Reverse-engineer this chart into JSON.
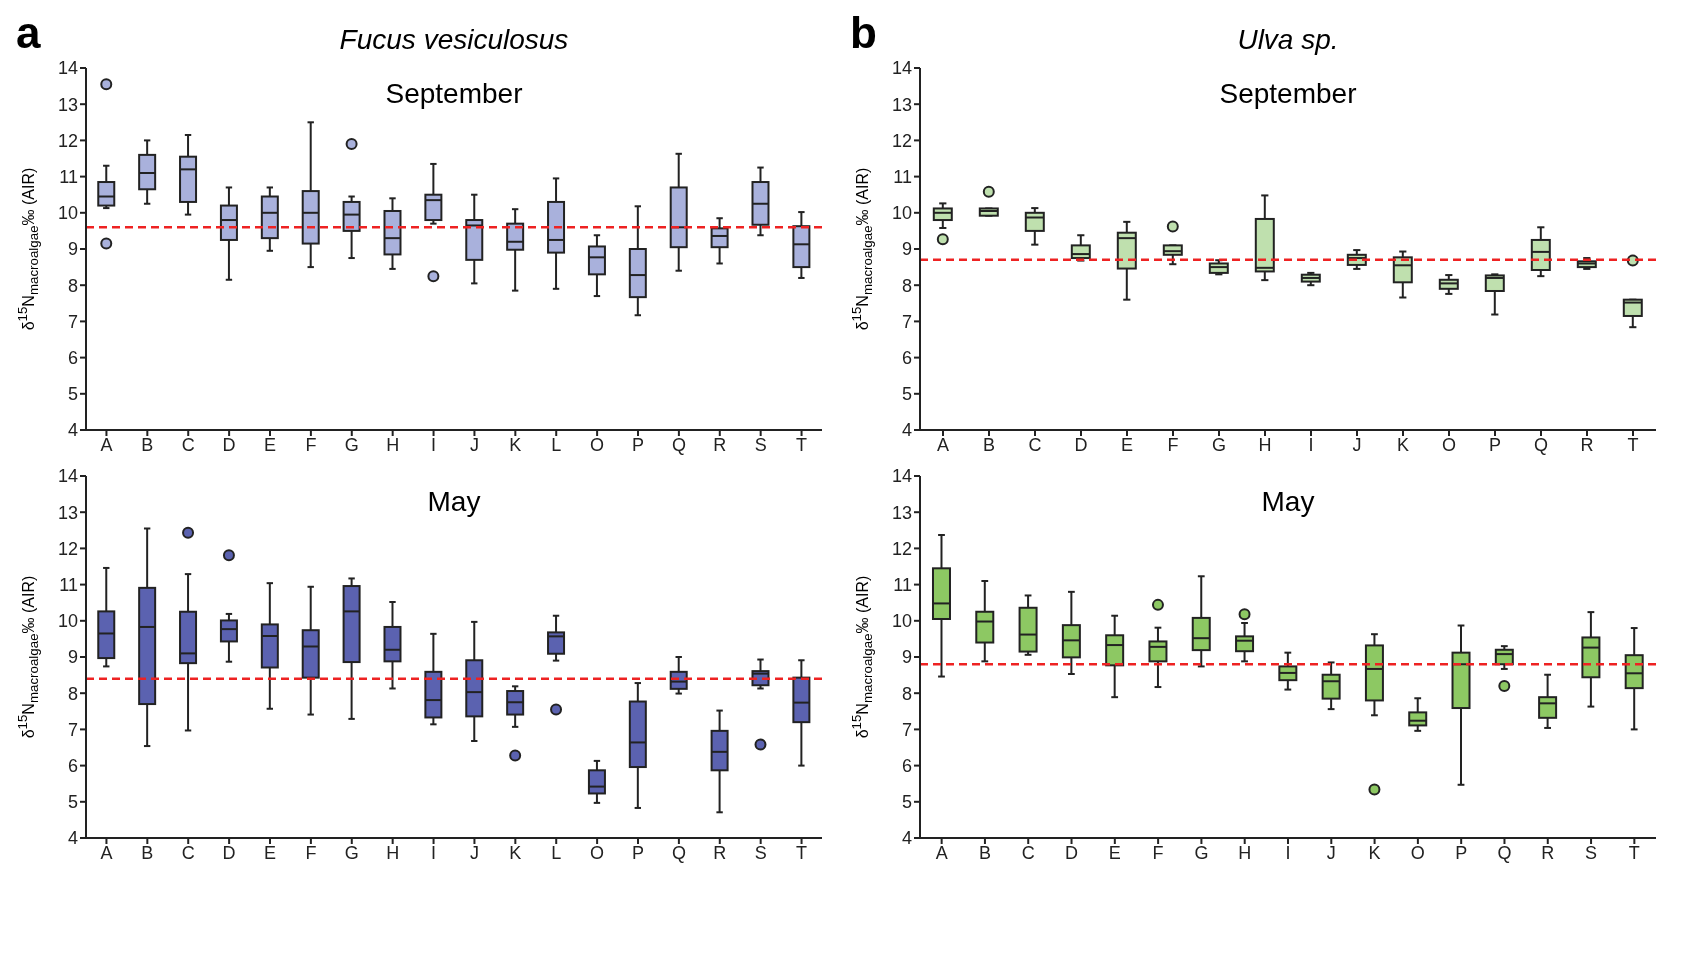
{
  "chart_data": [
    {
      "type": "box",
      "title": "Fucus vesiculosus",
      "subtitle": "September",
      "annotations": [
        "a"
      ],
      "ylabel": "δ$^{15}$N$_{macroalgae}$‰ (AIR)",
      "color": "#a9b1dc",
      "ylim": [
        4,
        14
      ],
      "yticks": [
        4,
        5,
        6,
        7,
        8,
        9,
        10,
        11,
        12,
        13,
        14
      ],
      "categories": [
        "A",
        "B",
        "C",
        "D",
        "E",
        "F",
        "G",
        "H",
        "I",
        "J",
        "K",
        "L",
        "O",
        "P",
        "Q",
        "R",
        "S",
        "T"
      ],
      "boxes": [
        {
          "low": 10.13,
          "q1": 10.2,
          "median": 10.45,
          "q3": 10.85,
          "high": 11.3,
          "outliers": [
            13.55,
            9.15
          ]
        },
        {
          "low": 10.25,
          "q1": 10.65,
          "median": 11.1,
          "q3": 11.6,
          "high": 12.0
        },
        {
          "low": 9.95,
          "q1": 10.3,
          "median": 11.2,
          "q3": 11.55,
          "high": 12.15
        },
        {
          "low": 8.15,
          "q1": 9.25,
          "median": 9.8,
          "q3": 10.2,
          "high": 10.7
        },
        {
          "low": 8.95,
          "q1": 9.3,
          "median": 10.0,
          "q3": 10.45,
          "high": 10.7
        },
        {
          "low": 8.5,
          "q1": 9.15,
          "median": 10.0,
          "q3": 10.6,
          "high": 12.5
        },
        {
          "low": 8.75,
          "q1": 9.5,
          "median": 9.95,
          "q3": 10.3,
          "high": 10.45,
          "outliers": [
            11.9
          ]
        },
        {
          "low": 8.45,
          "q1": 8.85,
          "median": 9.3,
          "q3": 10.05,
          "high": 10.4
        },
        {
          "low": 9.7,
          "q1": 9.8,
          "median": 10.35,
          "q3": 10.5,
          "high": 11.35,
          "outliers": [
            8.25
          ]
        },
        {
          "low": 8.05,
          "q1": 8.7,
          "median": 9.65,
          "q3": 9.8,
          "high": 10.5
        },
        {
          "low": 7.85,
          "q1": 8.98,
          "median": 9.2,
          "q3": 9.7,
          "high": 10.1
        },
        {
          "low": 7.9,
          "q1": 8.9,
          "median": 9.25,
          "q3": 10.3,
          "high": 10.95
        },
        {
          "low": 7.7,
          "q1": 8.3,
          "median": 8.77,
          "q3": 9.07,
          "high": 9.38
        },
        {
          "low": 7.17,
          "q1": 7.67,
          "median": 8.28,
          "q3": 9.0,
          "high": 10.18
        },
        {
          "low": 8.4,
          "q1": 9.05,
          "median": 9.6,
          "q3": 10.7,
          "high": 11.63
        },
        {
          "low": 8.6,
          "q1": 9.05,
          "median": 9.36,
          "q3": 9.57,
          "high": 9.85
        },
        {
          "low": 9.38,
          "q1": 9.67,
          "median": 10.25,
          "q3": 10.85,
          "high": 11.25
        },
        {
          "low": 8.2,
          "q1": 8.5,
          "median": 9.13,
          "q3": 9.63,
          "high": 10.02
        }
      ],
      "ref_lines": [
        {
          "axis": "y",
          "value": 9.6,
          "color": "#ee2222",
          "line_style": "dashed"
        }
      ]
    },
    {
      "type": "box",
      "title": "Ulva sp.",
      "subtitle": "September",
      "annotations": [
        "b"
      ],
      "ylabel": "δ$^{15}$N$_{macroalgae}$‰ (AIR)",
      "color": "#bfe0ae",
      "ylim": [
        4,
        14
      ],
      "yticks": [
        4,
        5,
        6,
        7,
        8,
        9,
        10,
        11,
        12,
        13,
        14
      ],
      "categories": [
        "A",
        "B",
        "C",
        "D",
        "E",
        "F",
        "G",
        "H",
        "I",
        "J",
        "K",
        "O",
        "P",
        "Q",
        "R",
        "T"
      ],
      "boxes": [
        {
          "low": 9.58,
          "q1": 9.8,
          "median": 10.0,
          "q3": 10.12,
          "high": 10.26,
          "outliers": [
            9.27
          ]
        },
        {
          "low": 9.92,
          "q1": 9.92,
          "median": 10.05,
          "q3": 10.12,
          "high": 10.12,
          "outliers": [
            10.58
          ]
        },
        {
          "low": 9.12,
          "q1": 9.5,
          "median": 9.87,
          "q3": 10.0,
          "high": 10.13
        },
        {
          "low": 8.68,
          "q1": 8.75,
          "median": 8.86,
          "q3": 9.1,
          "high": 9.38
        },
        {
          "low": 7.6,
          "q1": 8.46,
          "median": 9.3,
          "q3": 9.45,
          "high": 9.75
        },
        {
          "low": 8.58,
          "q1": 8.84,
          "median": 8.94,
          "q3": 9.1,
          "high": 9.1,
          "outliers": [
            9.62
          ]
        },
        {
          "low": 8.3,
          "q1": 8.34,
          "median": 8.5,
          "q3": 8.6,
          "high": 8.69
        },
        {
          "low": 8.14,
          "q1": 8.38,
          "median": 8.48,
          "q3": 9.83,
          "high": 10.48
        },
        {
          "low": 8.0,
          "q1": 8.1,
          "median": 8.2,
          "q3": 8.29,
          "high": 8.34
        },
        {
          "low": 8.45,
          "q1": 8.56,
          "median": 8.75,
          "q3": 8.84,
          "high": 8.97
        },
        {
          "low": 7.66,
          "q1": 8.08,
          "median": 8.55,
          "q3": 8.77,
          "high": 8.93
        },
        {
          "low": 7.76,
          "q1": 7.9,
          "median": 8.05,
          "q3": 8.15,
          "high": 8.28
        },
        {
          "low": 7.19,
          "q1": 7.84,
          "median": 8.2,
          "q3": 8.27,
          "high": 8.3
        },
        {
          "low": 8.25,
          "q1": 8.42,
          "median": 8.92,
          "q3": 9.25,
          "high": 9.6
        },
        {
          "low": 8.45,
          "q1": 8.5,
          "median": 8.6,
          "q3": 8.66,
          "high": 8.75
        },
        {
          "low": 6.84,
          "q1": 7.15,
          "median": 7.52,
          "q3": 7.6,
          "high": 7.6,
          "outliers": [
            8.68
          ]
        }
      ],
      "ref_lines": [
        {
          "axis": "y",
          "value": 8.7,
          "color": "#ee2222",
          "line_style": "dashed"
        }
      ]
    },
    {
      "type": "box",
      "subtitle": "May",
      "ylabel": "δ$^{15}$N$_{macroalgae}$‰ (AIR)",
      "color": "#5b62b0",
      "ylim": [
        4,
        14
      ],
      "yticks": [
        4,
        5,
        6,
        7,
        8,
        9,
        10,
        11,
        12,
        13,
        14
      ],
      "categories": [
        "A",
        "B",
        "C",
        "D",
        "E",
        "F",
        "G",
        "H",
        "I",
        "J",
        "K",
        "L",
        "O",
        "P",
        "Q",
        "R",
        "S",
        "T"
      ],
      "boxes": [
        {
          "low": 8.74,
          "q1": 8.97,
          "median": 9.65,
          "q3": 10.26,
          "high": 11.46
        },
        {
          "low": 6.54,
          "q1": 7.7,
          "median": 9.83,
          "q3": 10.91,
          "high": 12.55
        },
        {
          "low": 6.97,
          "q1": 8.83,
          "median": 9.1,
          "q3": 10.25,
          "high": 11.29,
          "outliers": [
            12.43
          ]
        },
        {
          "low": 8.87,
          "q1": 9.43,
          "median": 9.77,
          "q3": 10.01,
          "high": 10.19,
          "outliers": [
            11.81
          ]
        },
        {
          "low": 7.57,
          "q1": 8.71,
          "median": 9.58,
          "q3": 9.9,
          "high": 11.04
        },
        {
          "low": 7.41,
          "q1": 8.43,
          "median": 9.29,
          "q3": 9.74,
          "high": 10.94
        },
        {
          "low": 7.29,
          "q1": 8.86,
          "median": 10.26,
          "q3": 10.96,
          "high": 11.17
        },
        {
          "low": 8.13,
          "q1": 8.88,
          "median": 9.2,
          "q3": 9.83,
          "high": 10.52
        },
        {
          "low": 7.14,
          "q1": 7.33,
          "median": 7.81,
          "q3": 8.59,
          "high": 9.64
        },
        {
          "low": 6.68,
          "q1": 7.36,
          "median": 8.03,
          "q3": 8.91,
          "high": 9.97
        },
        {
          "low": 7.07,
          "q1": 7.41,
          "median": 7.75,
          "q3": 8.06,
          "high": 8.19,
          "outliers": [
            6.28
          ]
        },
        {
          "low": 8.9,
          "q1": 9.09,
          "median": 9.57,
          "q3": 9.68,
          "high": 10.14,
          "outliers": [
            7.55
          ]
        },
        {
          "low": 4.97,
          "q1": 5.23,
          "median": 5.42,
          "q3": 5.87,
          "high": 6.13
        },
        {
          "low": 4.83,
          "q1": 5.96,
          "median": 6.64,
          "q3": 7.77,
          "high": 8.28
        },
        {
          "low": 7.99,
          "q1": 8.12,
          "median": 8.32,
          "q3": 8.59,
          "high": 9.0
        },
        {
          "low": 4.71,
          "q1": 5.87,
          "median": 6.38,
          "q3": 6.96,
          "high": 7.52
        },
        {
          "low": 8.13,
          "q1": 8.22,
          "median": 8.54,
          "q3": 8.61,
          "high": 8.93,
          "outliers": [
            6.58
          ]
        },
        {
          "low": 6.0,
          "q1": 7.2,
          "median": 7.74,
          "q3": 8.43,
          "high": 8.91
        }
      ],
      "ref_lines": [
        {
          "axis": "y",
          "value": 8.4,
          "color": "#ee2222",
          "line_style": "dashed"
        }
      ]
    },
    {
      "type": "box",
      "subtitle": "May",
      "ylabel": "δ$^{15}$N$_{macroalgae}$‰ (AIR)",
      "color": "#8dc863",
      "ylim": [
        4,
        14
      ],
      "yticks": [
        4,
        5,
        6,
        7,
        8,
        9,
        10,
        11,
        12,
        13,
        14
      ],
      "categories": [
        "A",
        "B",
        "C",
        "D",
        "E",
        "F",
        "G",
        "H",
        "I",
        "J",
        "K",
        "O",
        "P",
        "Q",
        "R",
        "S",
        "T"
      ],
      "boxes": [
        {
          "low": 8.46,
          "q1": 10.05,
          "median": 10.48,
          "q3": 11.45,
          "high": 12.37
        },
        {
          "low": 8.88,
          "q1": 9.4,
          "median": 9.98,
          "q3": 10.25,
          "high": 11.1
        },
        {
          "low": 9.06,
          "q1": 9.15,
          "median": 9.62,
          "q3": 10.36,
          "high": 10.7
        },
        {
          "low": 8.53,
          "q1": 8.99,
          "median": 9.46,
          "q3": 9.88,
          "high": 10.8
        },
        {
          "low": 7.89,
          "q1": 8.77,
          "median": 9.33,
          "q3": 9.6,
          "high": 10.14
        },
        {
          "low": 8.17,
          "q1": 8.88,
          "median": 9.28,
          "q3": 9.43,
          "high": 9.81,
          "outliers": [
            10.44
          ]
        },
        {
          "low": 8.74,
          "q1": 9.19,
          "median": 9.52,
          "q3": 10.08,
          "high": 11.23
        },
        {
          "low": 8.88,
          "q1": 9.16,
          "median": 9.45,
          "q3": 9.57,
          "high": 9.94,
          "outliers": [
            10.18
          ]
        },
        {
          "low": 8.1,
          "q1": 8.36,
          "median": 8.56,
          "q3": 8.74,
          "high": 9.12
        },
        {
          "low": 7.56,
          "q1": 7.85,
          "median": 8.33,
          "q3": 8.51,
          "high": 8.85
        },
        {
          "low": 7.39,
          "q1": 7.8,
          "median": 8.67,
          "q3": 9.32,
          "high": 9.63,
          "outliers": [
            5.34
          ]
        },
        {
          "low": 6.96,
          "q1": 7.11,
          "median": 7.24,
          "q3": 7.47,
          "high": 7.86
        },
        {
          "low": 5.47,
          "q1": 7.59,
          "median": 8.8,
          "q3": 9.12,
          "high": 9.87
        },
        {
          "low": 8.67,
          "q1": 8.8,
          "median": 9.08,
          "q3": 9.2,
          "high": 9.3,
          "outliers": [
            8.2
          ]
        },
        {
          "low": 7.04,
          "q1": 7.32,
          "median": 7.72,
          "q3": 7.89,
          "high": 8.51
        },
        {
          "low": 7.63,
          "q1": 8.44,
          "median": 9.26,
          "q3": 9.54,
          "high": 10.24
        },
        {
          "low": 7.0,
          "q1": 8.14,
          "median": 8.55,
          "q3": 9.05,
          "high": 9.8
        }
      ],
      "ref_lines": [
        {
          "axis": "y",
          "value": 8.8,
          "color": "#ee2222",
          "line_style": "dashed"
        }
      ]
    }
  ]
}
